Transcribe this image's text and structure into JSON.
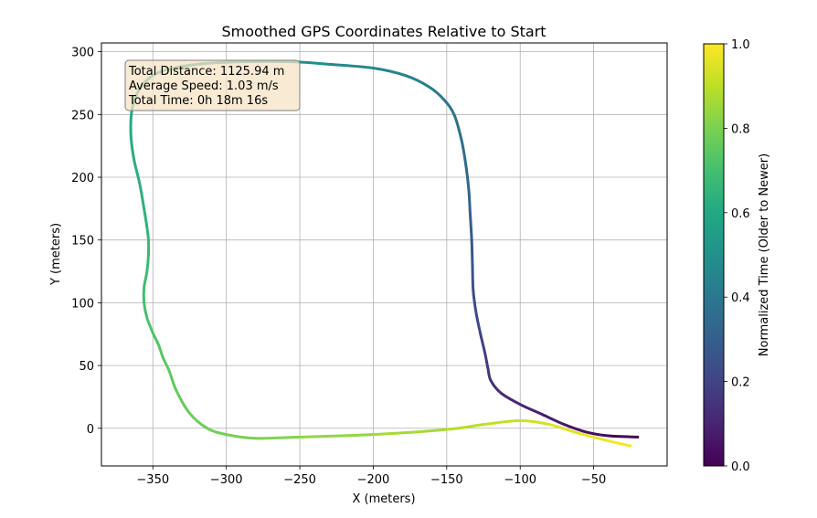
{
  "chart_data": {
    "type": "line",
    "title": "Smoothed GPS Coordinates Relative to Start",
    "xlabel": "X (meters)",
    "ylabel": "Y (meters)",
    "xlim": [
      -385,
      0
    ],
    "ylim": [
      -30,
      307
    ],
    "x_ticks": [
      -350,
      -300,
      -250,
      -200,
      -150,
      -100,
      -50
    ],
    "y_ticks": [
      0,
      50,
      100,
      150,
      200,
      250,
      300
    ],
    "grid": true,
    "colorbar": {
      "label": "Normalized Time (Older to Newer)",
      "ticks": [
        0.0,
        0.2,
        0.4,
        0.6,
        0.8,
        1.0
      ],
      "tick_labels": [
        "0.0",
        "0.2",
        "0.4",
        "0.6",
        "0.8",
        "1.0"
      ],
      "colormap": "viridis"
    },
    "annotation": {
      "lines": [
        "Total Distance: 1125.94 m",
        "Average Speed: 1.03 m/s",
        "Total Time: 0h 18m 16s"
      ]
    },
    "series": [
      {
        "x": [
          -20,
          -40,
          -55,
          -70,
          -85,
          -100,
          -113,
          -120,
          -122,
          -124,
          -127,
          -130,
          -132,
          -132.5,
          -133,
          -134,
          -135,
          -137,
          -140,
          -145,
          -152,
          -162,
          -178,
          -200,
          -230,
          -255,
          -290,
          -320,
          -345,
          -358,
          -364,
          -365,
          -363,
          -359,
          -356,
          -354,
          -353,
          -353,
          -354,
          -356,
          -356,
          -354,
          -350,
          -346,
          -343,
          -339,
          -334,
          -325,
          -313,
          -300,
          -280,
          -250,
          -200,
          -150,
          -125,
          -100,
          -80,
          -60,
          -40,
          -25
        ],
        "y": [
          -7,
          -6,
          -3,
          3,
          11,
          19,
          28,
          38,
          48,
          60,
          75,
          92,
          110,
          130,
          150,
          170,
          190,
          210,
          230,
          250,
          262,
          272,
          281,
          287,
          290,
          292,
          292,
          290,
          284,
          272,
          255,
          235,
          215,
          195,
          175,
          160,
          150,
          138,
          125,
          112,
          100,
          88,
          76,
          66,
          56,
          46,
          30,
          12,
          0,
          -5,
          -8,
          -7,
          -5,
          -1,
          3,
          6,
          3,
          -4,
          -10,
          -14
        ],
        "t": [
          0.0,
          0.02,
          0.04,
          0.06,
          0.08,
          0.1,
          0.12,
          0.14,
          0.16,
          0.18,
          0.2,
          0.22,
          0.24,
          0.26,
          0.28,
          0.3,
          0.32,
          0.34,
          0.36,
          0.38,
          0.4,
          0.42,
          0.44,
          0.46,
          0.48,
          0.5,
          0.52,
          0.54,
          0.56,
          0.58,
          0.6,
          0.61,
          0.62,
          0.63,
          0.64,
          0.65,
          0.66,
          0.67,
          0.68,
          0.69,
          0.7,
          0.71,
          0.72,
          0.73,
          0.74,
          0.75,
          0.76,
          0.77,
          0.78,
          0.79,
          0.8,
          0.82,
          0.85,
          0.88,
          0.9,
          0.92,
          0.94,
          0.96,
          0.98,
          1.0
        ]
      }
    ]
  }
}
